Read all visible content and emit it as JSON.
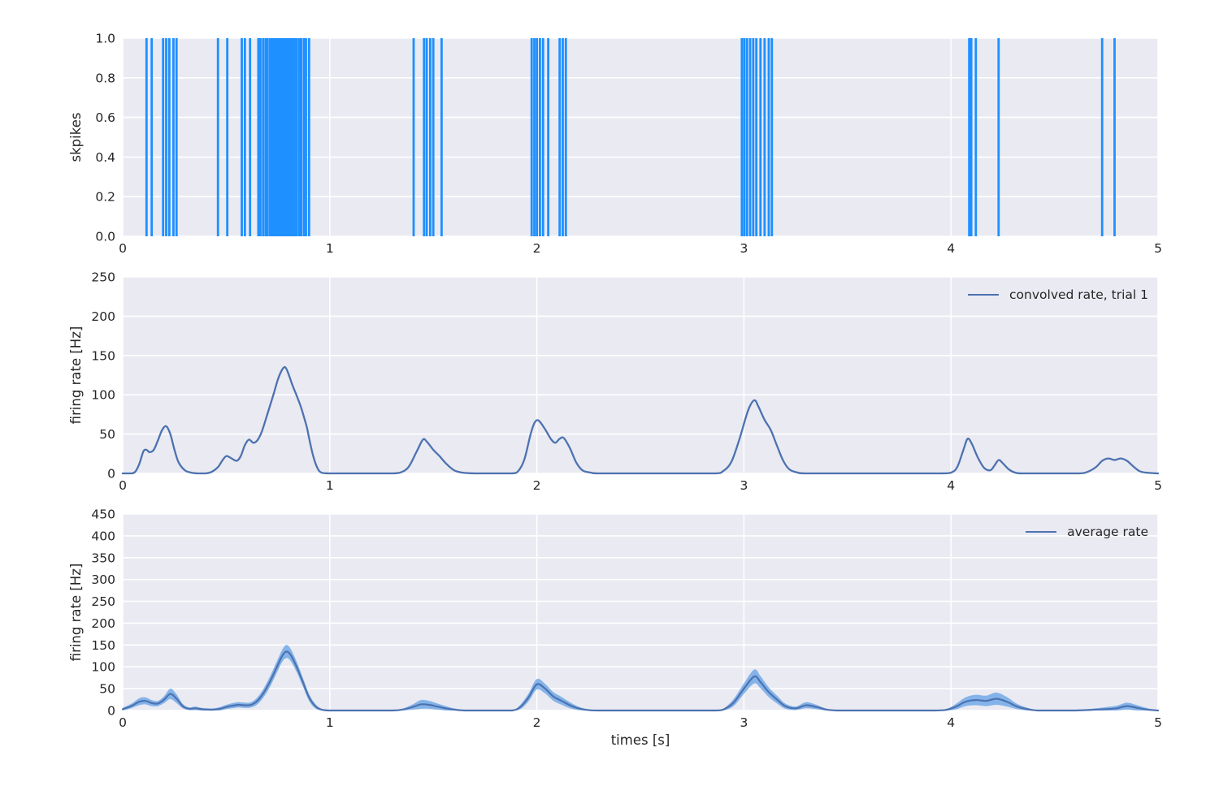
{
  "figure": {
    "background": "#ffffff",
    "axes_background": "#eaeaf2",
    "grid_color": "#ffffff",
    "text_color": "#262626",
    "spike_color": "#1e90ff",
    "line_color": "#4c72b0",
    "band_color": "#79ade8"
  },
  "chart_data": [
    {
      "type": "event-raster",
      "ylabel": "skpikes",
      "xlim": [
        0,
        5
      ],
      "ylim": [
        0.0,
        1.0
      ],
      "xticks": [
        0,
        1,
        2,
        3,
        4,
        5
      ],
      "yticks": [
        0.0,
        0.2,
        0.4,
        0.6,
        0.8,
        1.0
      ],
      "ytick_labels": [
        "0.0",
        "0.2",
        "0.4",
        "0.6",
        "0.8",
        "1.0"
      ],
      "grid": true,
      "spike_times": [
        0.115,
        0.14,
        0.195,
        0.21,
        0.225,
        0.245,
        0.26,
        0.46,
        0.505,
        0.575,
        0.59,
        0.615,
        0.655,
        0.665,
        0.678,
        0.69,
        0.7,
        0.712,
        0.72,
        0.728,
        0.735,
        0.745,
        0.752,
        0.76,
        0.768,
        0.775,
        0.782,
        0.79,
        0.798,
        0.805,
        0.813,
        0.822,
        0.83,
        0.84,
        0.852,
        0.862,
        0.875,
        0.885,
        0.9,
        1.405,
        1.455,
        1.468,
        1.485,
        1.5,
        1.54,
        1.975,
        1.988,
        2.0,
        2.015,
        2.03,
        2.055,
        2.11,
        2.125,
        2.14,
        2.99,
        3.002,
        3.015,
        3.03,
        3.045,
        3.06,
        3.08,
        3.1,
        3.12,
        3.135,
        4.088,
        4.098,
        4.12,
        4.23,
        4.73,
        4.79
      ]
    },
    {
      "type": "line",
      "ylabel": "firing rate [Hz]",
      "legend": "convolved rate, trial 1",
      "legend_position": "upper right",
      "xlim": [
        0,
        5
      ],
      "ylim": [
        0,
        250
      ],
      "xticks": [
        0,
        1,
        2,
        3,
        4,
        5
      ],
      "yticks": [
        0,
        50,
        100,
        150,
        200,
        250
      ],
      "grid": true,
      "x": [
        0,
        0.04,
        0.06,
        0.08,
        0.1,
        0.115,
        0.13,
        0.15,
        0.17,
        0.19,
        0.21,
        0.23,
        0.25,
        0.27,
        0.3,
        0.33,
        0.36,
        0.4,
        0.43,
        0.46,
        0.48,
        0.5,
        0.52,
        0.55,
        0.57,
        0.59,
        0.61,
        0.63,
        0.65,
        0.67,
        0.69,
        0.71,
        0.73,
        0.75,
        0.77,
        0.785,
        0.8,
        0.82,
        0.84,
        0.86,
        0.875,
        0.89,
        0.9,
        0.92,
        0.94,
        0.96,
        1.0,
        1.1,
        1.2,
        1.3,
        1.34,
        1.38,
        1.42,
        1.45,
        1.47,
        1.5,
        1.53,
        1.56,
        1.6,
        1.64,
        1.7,
        1.8,
        1.88,
        1.91,
        1.94,
        1.97,
        1.99,
        2.01,
        2.04,
        2.07,
        2.09,
        2.11,
        2.13,
        2.16,
        2.19,
        2.22,
        2.26,
        2.3,
        2.5,
        2.7,
        2.86,
        2.9,
        2.94,
        2.98,
        3.02,
        3.05,
        3.07,
        3.1,
        3.13,
        3.16,
        3.19,
        3.22,
        3.26,
        3.3,
        3.5,
        3.7,
        3.95,
        4.0,
        4.03,
        4.06,
        4.08,
        4.1,
        4.13,
        4.16,
        4.19,
        4.21,
        4.23,
        4.25,
        4.28,
        4.31,
        4.35,
        4.5,
        4.62,
        4.66,
        4.7,
        4.73,
        4.76,
        4.79,
        4.82,
        4.85,
        4.88,
        4.91,
        4.94,
        5.0
      ],
      "y": [
        0,
        0,
        2,
        12,
        28,
        30,
        27,
        30,
        42,
        55,
        60,
        50,
        30,
        14,
        4,
        1,
        0,
        0,
        2,
        8,
        16,
        22,
        20,
        16,
        22,
        36,
        43,
        39,
        42,
        52,
        68,
        85,
        102,
        120,
        132,
        135,
        127,
        112,
        99,
        85,
        72,
        58,
        45,
        22,
        7,
        1,
        0,
        0,
        0,
        0,
        1,
        8,
        28,
        43,
        40,
        30,
        22,
        13,
        4,
        1,
        0,
        0,
        0,
        3,
        18,
        50,
        65,
        67,
        56,
        43,
        39,
        44,
        45,
        32,
        14,
        4,
        1,
        0,
        0,
        0,
        0,
        3,
        15,
        45,
        80,
        93,
        85,
        68,
        55,
        35,
        16,
        5,
        1,
        0,
        0,
        0,
        0,
        1,
        8,
        30,
        44,
        38,
        20,
        7,
        4,
        10,
        17,
        13,
        5,
        1,
        0,
        0,
        0,
        2,
        8,
        16,
        19,
        17,
        19,
        16,
        9,
        3,
        1,
        0
      ]
    },
    {
      "type": "area-line",
      "ylabel": "firing rate [Hz]",
      "xlabel": "times [s]",
      "legend": "average rate",
      "legend_position": "upper right",
      "xlim": [
        0,
        5
      ],
      "ylim": [
        0,
        450
      ],
      "xticks": [
        0,
        1,
        2,
        3,
        4,
        5
      ],
      "yticks": [
        0,
        50,
        100,
        150,
        200,
        250,
        300,
        350,
        400,
        450
      ],
      "grid": true,
      "x": [
        0,
        0.04,
        0.08,
        0.11,
        0.14,
        0.17,
        0.2,
        0.23,
        0.26,
        0.29,
        0.32,
        0.35,
        0.38,
        0.41,
        0.44,
        0.47,
        0.5,
        0.53,
        0.56,
        0.59,
        0.62,
        0.65,
        0.68,
        0.71,
        0.74,
        0.77,
        0.79,
        0.81,
        0.84,
        0.87,
        0.9,
        0.93,
        0.96,
        1.0,
        1.1,
        1.2,
        1.3,
        1.35,
        1.4,
        1.44,
        1.48,
        1.52,
        1.56,
        1.6,
        1.65,
        1.7,
        1.8,
        1.88,
        1.92,
        1.96,
        2.0,
        2.04,
        2.08,
        2.12,
        2.16,
        2.2,
        2.25,
        2.3,
        2.5,
        2.7,
        2.86,
        2.9,
        2.95,
        3.0,
        3.05,
        3.08,
        3.12,
        3.16,
        3.2,
        3.25,
        3.3,
        3.35,
        3.4,
        3.45,
        3.5,
        3.7,
        3.9,
        3.97,
        4.02,
        4.07,
        4.12,
        4.17,
        4.22,
        4.27,
        4.32,
        4.37,
        4.42,
        4.5,
        4.6,
        4.7,
        4.75,
        4.8,
        4.85,
        4.9,
        4.95,
        5.0
      ],
      "mean": [
        3,
        10,
        20,
        22,
        17,
        16,
        25,
        38,
        27,
        10,
        4,
        5,
        3,
        2,
        2,
        4,
        8,
        11,
        13,
        12,
        13,
        22,
        40,
        65,
        95,
        125,
        135,
        128,
        100,
        65,
        30,
        10,
        2,
        0,
        0,
        0,
        0,
        2,
        8,
        14,
        13,
        9,
        5,
        2,
        0,
        0,
        0,
        0,
        8,
        30,
        60,
        50,
        32,
        22,
        12,
        5,
        1,
        0,
        0,
        0,
        0,
        2,
        18,
        50,
        78,
        65,
        42,
        25,
        10,
        5,
        12,
        8,
        2,
        0,
        0,
        0,
        0,
        1,
        8,
        20,
        24,
        22,
        27,
        20,
        9,
        3,
        0,
        0,
        0,
        2,
        3,
        5,
        10,
        6,
        2,
        0
      ],
      "err": [
        3,
        5,
        8,
        8,
        7,
        6,
        8,
        12,
        10,
        5,
        3,
        4,
        3,
        3,
        3,
        4,
        5,
        6,
        6,
        6,
        6,
        8,
        10,
        12,
        13,
        14,
        15,
        14,
        12,
        10,
        8,
        5,
        2,
        1,
        1,
        1,
        1,
        2,
        6,
        10,
        9,
        7,
        5,
        3,
        1,
        0,
        0,
        0,
        5,
        9,
        12,
        11,
        10,
        9,
        7,
        4,
        1,
        0,
        0,
        0,
        0,
        2,
        8,
        12,
        16,
        14,
        11,
        9,
        6,
        4,
        7,
        5,
        2,
        1,
        0,
        0,
        0,
        1,
        6,
        10,
        12,
        12,
        14,
        11,
        6,
        3,
        1,
        0,
        0,
        3,
        5,
        6,
        8,
        6,
        3,
        1
      ]
    }
  ]
}
